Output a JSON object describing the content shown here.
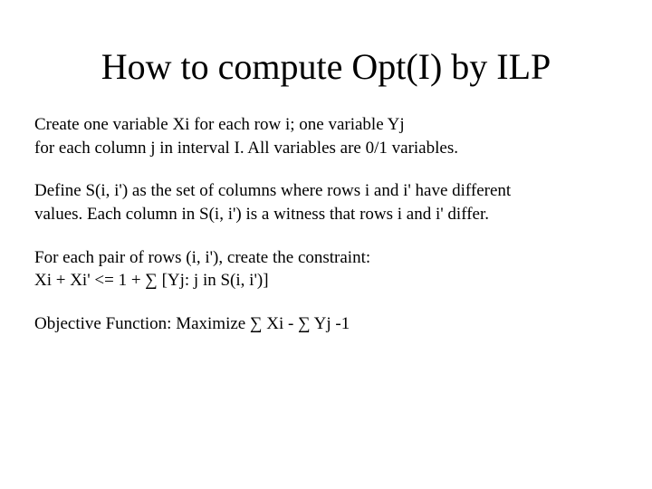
{
  "slide": {
    "title": "How to compute Opt(I) by ILP",
    "paragraphs": {
      "p1_line1": "Create one variable Xi for each row i; one variable Yj",
      "p1_line2": "for each column j in interval I. All variables are 0/1 variables.",
      "p2_line1": "Define S(i, i')  as the set of columns where rows i and i' have different",
      "p2_line2": "values. Each column in S(i, i') is a witness that rows i and i' differ.",
      "p3_line1": "For each pair of rows (i, i'), create the constraint:",
      "p3_line2": "Xi + Xi' <= 1 + ∑  [Yj: j in S(i, i')]",
      "p4_line1": "Objective Function: Maximize ∑ Xi - ∑ Yj -1"
    }
  },
  "style": {
    "background_color": "#ffffff",
    "text_color": "#000000",
    "font_family": "Times New Roman",
    "title_fontsize": 40,
    "body_fontsize": 19,
    "slide_width": 720,
    "slide_height": 540
  }
}
